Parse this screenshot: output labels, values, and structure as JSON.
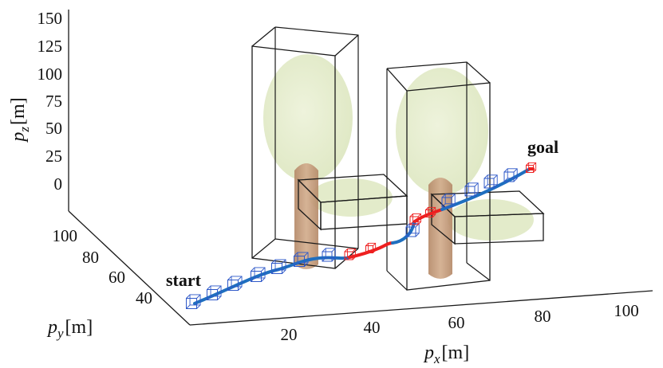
{
  "axes": {
    "z_label_main": "p",
    "z_label_sub": "z",
    "z_label_unit": "[m]",
    "y_label_main": "p",
    "y_label_sub": "y",
    "y_label_unit": "[m]",
    "x_label_main": "p",
    "x_label_sub": "x",
    "x_label_unit": "[m]",
    "z_ticks": [
      "150",
      "125",
      "100",
      "75",
      "50",
      "25",
      "0"
    ],
    "y_ticks": [
      "100",
      "80",
      "60",
      "40"
    ],
    "x_ticks": [
      "20",
      "40",
      "60",
      "80",
      "100"
    ]
  },
  "annotations": {
    "start": "start",
    "goal": "goal"
  },
  "colors": {
    "path_safe": "#1f6fbf",
    "path_unsafe": "#ee1f1f",
    "box_safe": "#2e58c8",
    "box_unsafe": "#ee2222",
    "canopy": "#e2ebc9",
    "trunk": "#c49a78",
    "edge": "#1a1a1a"
  }
}
